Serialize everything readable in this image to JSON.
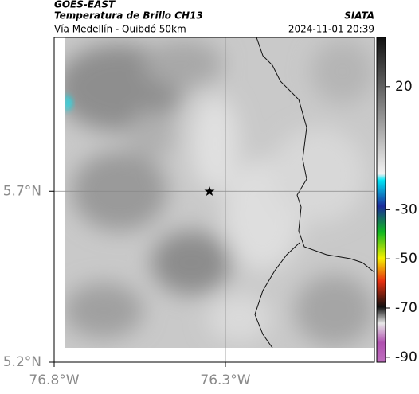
{
  "header": {
    "satellite": "GOES-EAST",
    "product": "Temperatura de Brillo CH13",
    "route": "Vía Medellín - Quibdó 50km",
    "source": "SIATA",
    "datetime": "2024-11-01 20:39"
  },
  "map": {
    "latlim": [
      5.2,
      6.15
    ],
    "lonlim": [
      -76.8,
      -75.865
    ],
    "latticks": [
      {
        "value": 5.2,
        "label": "5.2°N"
      },
      {
        "value": 5.7,
        "label": "5.7°N"
      }
    ],
    "lonticks": [
      {
        "value": -76.8,
        "label": "76.8°W"
      },
      {
        "value": -76.3,
        "label": "76.3°W"
      }
    ]
  },
  "colorbar": {
    "lim": [
      -92,
      40
    ],
    "ticks": [
      20,
      -30,
      -50,
      -70,
      -90
    ]
  }
}
